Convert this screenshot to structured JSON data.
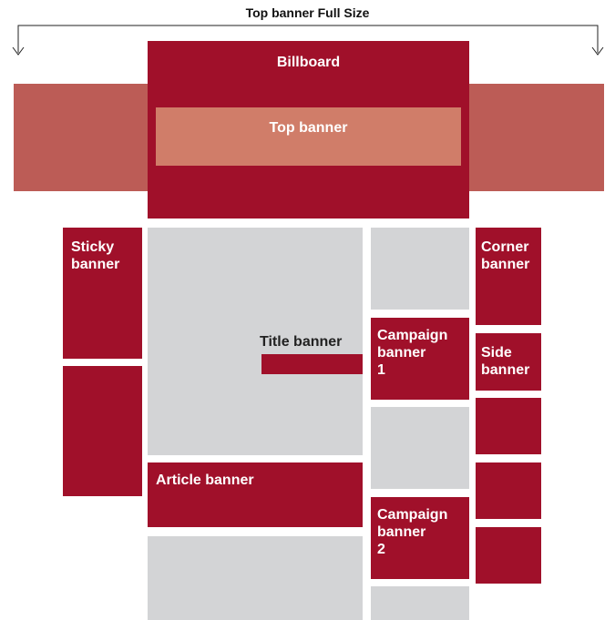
{
  "labels": {
    "full_size": "Top banner Full Size",
    "billboard": "Billboard",
    "top_banner": "Top banner",
    "sticky_banner": "Sticky\nbanner",
    "title_banner": "Title banner",
    "article_banner": "Article banner",
    "campaign_banner_1": "Campaign\nbanner\n1",
    "campaign_banner_2": "Campaign\nbanner\n2",
    "corner_banner": "Corner\nbanner",
    "side_banner": "Side\nbanner"
  },
  "colors": {
    "banner": "#a0102a",
    "top_banner_band": "#bc5c56",
    "top_banner_inner": "#d07d69",
    "content": "#d3d4d6"
  }
}
